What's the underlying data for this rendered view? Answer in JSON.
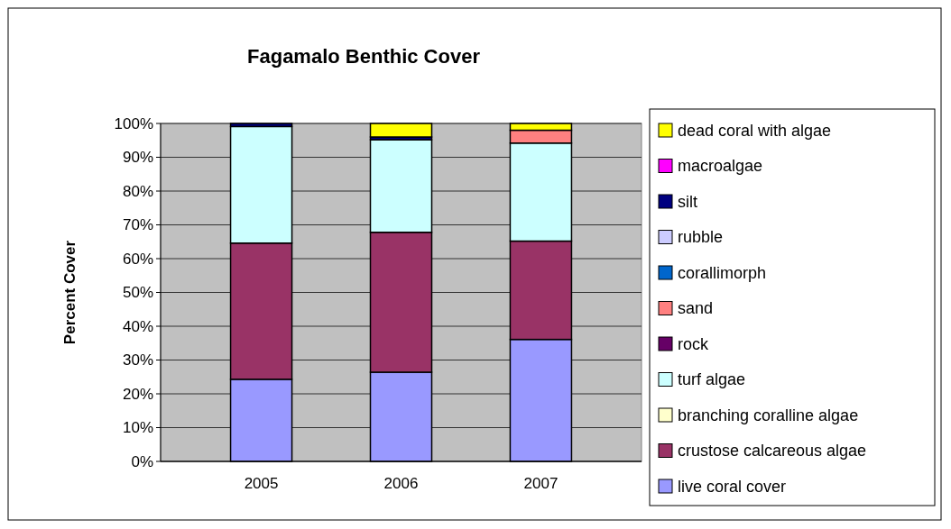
{
  "chart_data": {
    "type": "bar",
    "title": "Fagamalo Benthic Cover",
    "ylabel": "Percent Cover",
    "categories": [
      "2005",
      "2006",
      "2007"
    ],
    "stacked": true,
    "grid": "y",
    "legend": "right",
    "ylim": [
      0,
      100
    ],
    "yticks": [
      {
        "value": 0,
        "label": "0%"
      },
      {
        "value": 10,
        "label": "10%"
      },
      {
        "value": 20,
        "label": "20%"
      },
      {
        "value": 30,
        "label": "30%"
      },
      {
        "value": 40,
        "label": "40%"
      },
      {
        "value": 50,
        "label": "50%"
      },
      {
        "value": 60,
        "label": "60%"
      },
      {
        "value": 70,
        "label": "70%"
      },
      {
        "value": 80,
        "label": "80%"
      },
      {
        "value": 90,
        "label": "90%"
      },
      {
        "value": 100,
        "label": "100%"
      }
    ],
    "series": [
      {
        "name": "live coral cover",
        "color": "#9999ff",
        "values": [
          24.3,
          26.4,
          36.1
        ]
      },
      {
        "name": "crustose calcareous algae",
        "color": "#993366",
        "values": [
          40.3,
          41.4,
          29.1
        ]
      },
      {
        "name": "branching coralline algae",
        "color": "#ffffcc",
        "values": [
          0,
          0,
          0
        ]
      },
      {
        "name": "turf algae",
        "color": "#ccffff",
        "values": [
          34.5,
          27.4,
          29.0
        ]
      },
      {
        "name": "rock",
        "color": "#660066",
        "values": [
          0,
          0,
          0
        ]
      },
      {
        "name": "sand",
        "color": "#ff8080",
        "values": [
          0,
          0,
          3.8
        ]
      },
      {
        "name": "corallimorph",
        "color": "#0066cc",
        "values": [
          0,
          0,
          0
        ]
      },
      {
        "name": "rubble",
        "color": "#ccccff",
        "values": [
          0,
          0,
          0
        ]
      },
      {
        "name": "silt",
        "color": "#000080",
        "values": [
          0.9,
          0.8,
          0
        ]
      },
      {
        "name": "macroalgae",
        "color": "#ff00ff",
        "values": [
          0,
          0,
          0
        ]
      },
      {
        "name": "dead coral with algae",
        "color": "#ffff00",
        "values": [
          0,
          4.0,
          2.0
        ]
      }
    ]
  }
}
